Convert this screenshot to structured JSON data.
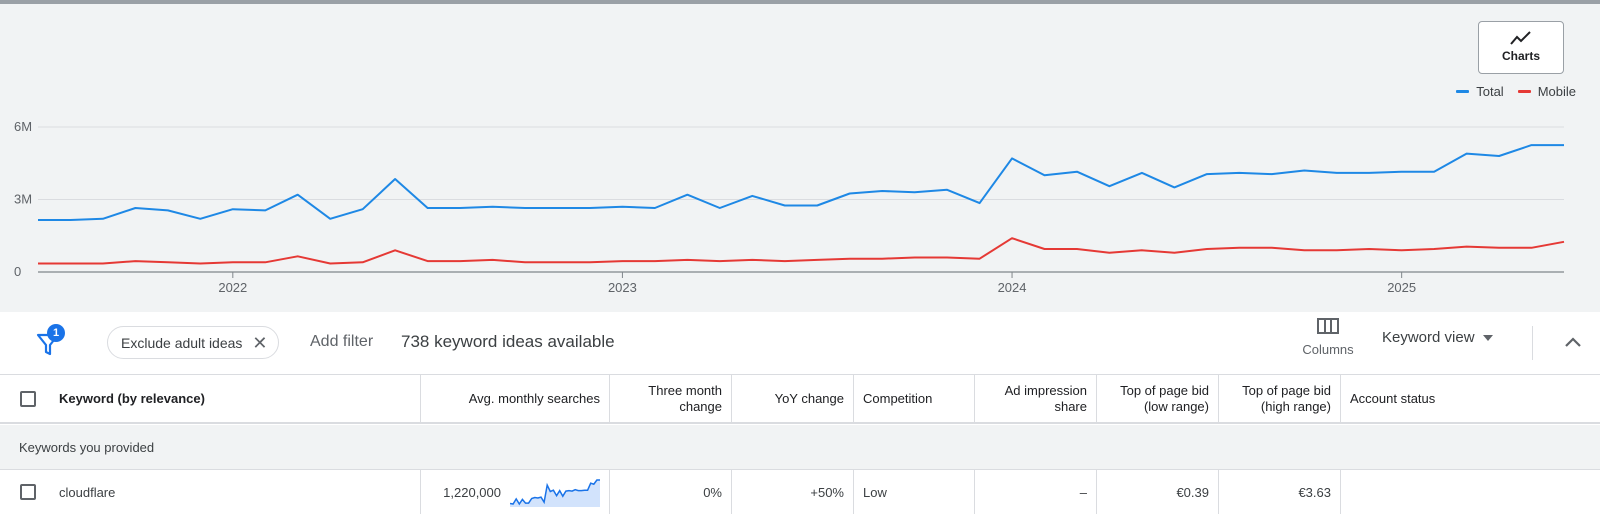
{
  "chart_data": {
    "type": "line",
    "title": "",
    "xlabel": "",
    "ylabel": "",
    "x": [
      "2021-07",
      "2021-08",
      "2021-09",
      "2021-10",
      "2021-11",
      "2021-12",
      "2022-01",
      "2022-02",
      "2022-03",
      "2022-04",
      "2022-05",
      "2022-06",
      "2022-07",
      "2022-08",
      "2022-09",
      "2022-10",
      "2022-11",
      "2022-12",
      "2023-01",
      "2023-02",
      "2023-03",
      "2023-04",
      "2023-05",
      "2023-06",
      "2023-07",
      "2023-08",
      "2023-09",
      "2023-10",
      "2023-11",
      "2023-12",
      "2024-01",
      "2024-02",
      "2024-03",
      "2024-04",
      "2024-05",
      "2024-06",
      "2024-07",
      "2024-08",
      "2024-09",
      "2024-10",
      "2024-11",
      "2024-12",
      "2025-01",
      "2025-02",
      "2025-03",
      "2025-04",
      "2025-05",
      "2025-06"
    ],
    "series": [
      {
        "name": "Total",
        "color": "#1e88e5",
        "values": [
          2.15,
          2.15,
          2.2,
          2.65,
          2.55,
          2.2,
          2.6,
          2.55,
          3.2,
          2.2,
          2.6,
          3.85,
          2.65,
          2.65,
          2.7,
          2.65,
          2.65,
          2.65,
          2.7,
          2.65,
          3.2,
          2.65,
          3.15,
          2.75,
          2.75,
          3.25,
          3.35,
          3.3,
          3.4,
          2.85,
          4.7,
          4.0,
          4.15,
          3.55,
          4.1,
          3.5,
          4.05,
          4.1,
          4.05,
          4.2,
          4.1,
          4.1,
          4.15,
          4.15,
          4.9,
          4.8,
          5.25,
          5.25
        ]
      },
      {
        "name": "Mobile",
        "color": "#e53935",
        "values": [
          0.35,
          0.35,
          0.35,
          0.45,
          0.4,
          0.35,
          0.4,
          0.4,
          0.65,
          0.35,
          0.4,
          0.9,
          0.45,
          0.45,
          0.5,
          0.4,
          0.4,
          0.4,
          0.45,
          0.45,
          0.5,
          0.45,
          0.5,
          0.45,
          0.5,
          0.55,
          0.55,
          0.6,
          0.6,
          0.55,
          1.4,
          0.95,
          0.95,
          0.8,
          0.9,
          0.8,
          0.95,
          1.0,
          1.0,
          0.9,
          0.9,
          0.95,
          0.9,
          0.95,
          1.05,
          1.0,
          1.0,
          1.25
        ]
      }
    ],
    "y_ticks": [
      "6M",
      "3M",
      "0"
    ],
    "y_tick_values": [
      6,
      3,
      0
    ],
    "x_ticks": [
      "2022",
      "2023",
      "2024",
      "2025"
    ],
    "ylim": [
      0,
      6
    ],
    "grid": true,
    "legend": "top-right"
  },
  "chart_ui": {
    "charts_button_label": "Charts",
    "legend": [
      {
        "label": "Total",
        "color": "#1e88e5"
      },
      {
        "label": "Mobile",
        "color": "#e53935"
      }
    ]
  },
  "toolbar": {
    "filter_badge": "1",
    "chip_label": "Exclude adult ideas",
    "add_filter": "Add filter",
    "ideas_count": "738 keyword ideas available",
    "columns_label": "Columns",
    "keyword_view_label": "Keyword view"
  },
  "table": {
    "headers": {
      "keyword": "Keyword (by relevance)",
      "avg_searches": "Avg. monthly searches",
      "three_month_change": "Three month change",
      "yoy_change": "YoY change",
      "competition": "Competition",
      "ad_impression_share": "Ad impression share",
      "bid_low": "Top of page bid (low range)",
      "bid_high": "Top of page bid (high range)",
      "account_status": "Account status"
    },
    "section_label": "Keywords you provided",
    "rows": [
      {
        "keyword": "cloudflare",
        "avg_searches": "1,220,000",
        "three_month_change": "0%",
        "yoy_change": "+50%",
        "competition": "Low",
        "ad_impression_share": "–",
        "bid_low": "€0.39",
        "bid_high": "€3.63",
        "account_status": ""
      }
    ]
  },
  "colors": {
    "accent": "#1a73e8",
    "total_line": "#1e88e5",
    "mobile_line": "#e53935",
    "background": "#f1f3f4"
  }
}
